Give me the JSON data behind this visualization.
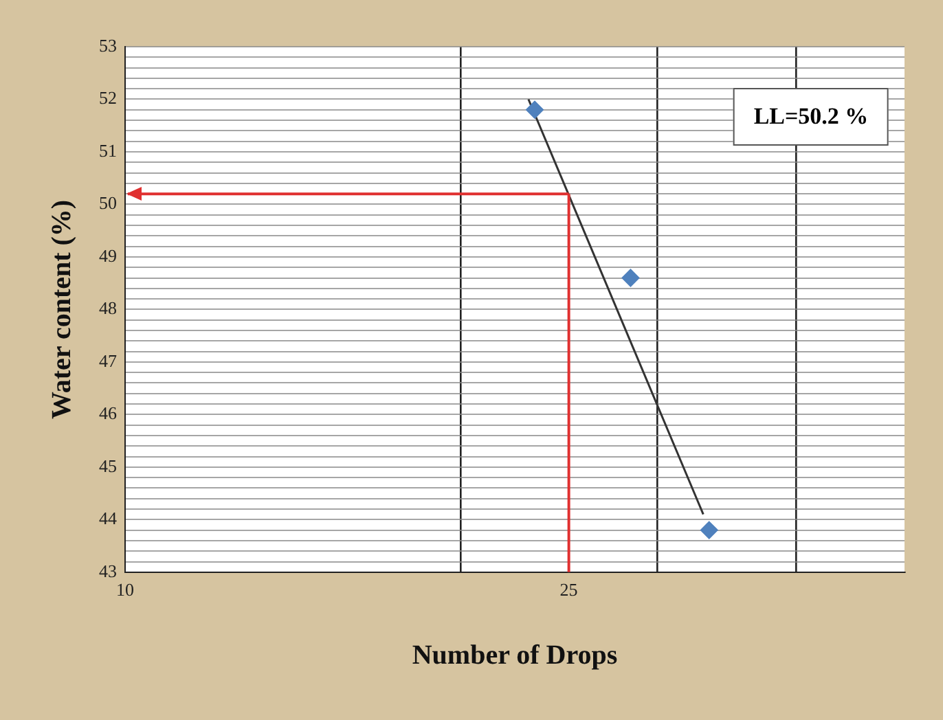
{
  "chart_data": {
    "type": "scatter",
    "xlabel": "Number of Drops",
    "ylabel": "Water content (%)",
    "log": "x",
    "xlim": [
      10,
      50
    ],
    "xticks": [
      10,
      {
        "value": 20,
        "label": null
      },
      25,
      {
        "value": 30,
        "label": null
      },
      {
        "value": 40,
        "label": null
      }
    ],
    "ylim": [
      43,
      53
    ],
    "yticks": [
      43,
      {
        "value": 43.2,
        "label": null
      },
      {
        "value": 43.4,
        "label": null
      },
      {
        "value": 43.6,
        "label": null
      },
      {
        "value": 43.8,
        "label": null
      },
      44,
      {
        "value": 44.2,
        "label": null
      },
      {
        "value": 44.4,
        "label": null
      },
      {
        "value": 44.6,
        "label": null
      },
      {
        "value": 44.8,
        "label": null
      },
      45,
      {
        "value": 45.2,
        "label": null
      },
      {
        "value": 45.4,
        "label": null
      },
      {
        "value": 45.6,
        "label": null
      },
      {
        "value": 45.8,
        "label": null
      },
      46,
      {
        "value": 46.2,
        "label": null
      },
      {
        "value": 46.4,
        "label": null
      },
      {
        "value": 46.6,
        "label": null
      },
      {
        "value": 46.8,
        "label": null
      },
      47,
      {
        "value": 47.2,
        "label": null
      },
      {
        "value": 47.4,
        "label": null
      },
      {
        "value": 47.6,
        "label": null
      },
      {
        "value": 47.8,
        "label": null
      },
      48,
      {
        "value": 48.2,
        "label": null
      },
      {
        "value": 48.4,
        "label": null
      },
      {
        "value": 48.6,
        "label": null
      },
      {
        "value": 48.8,
        "label": null
      },
      49,
      {
        "value": 49.2,
        "label": null
      },
      {
        "value": 49.4,
        "label": null
      },
      {
        "value": 49.6,
        "label": null
      },
      {
        "value": 49.8,
        "label": null
      },
      50,
      {
        "value": 50.2,
        "label": null
      },
      {
        "value": 50.4,
        "label": null
      },
      {
        "value": 50.6,
        "label": null
      },
      {
        "value": 50.8,
        "label": null
      },
      51,
      {
        "value": 51.2,
        "label": null
      },
      {
        "value": 51.4,
        "label": null
      },
      {
        "value": 51.6,
        "label": null
      },
      {
        "value": 51.8,
        "label": null
      },
      52,
      {
        "value": 52.2,
        "label": null
      },
      {
        "value": 52.4,
        "label": null
      },
      {
        "value": 52.6,
        "label": null
      },
      {
        "value": 52.8,
        "label": null
      },
      53
    ],
    "grid": true,
    "legend": false,
    "marker": "diamond",
    "series": [
      {
        "type": "scatter",
        "color": "#4f81bd",
        "x": [
          23.3,
          28.4,
          33.4
        ],
        "values": [
          51.8,
          48.6,
          43.8
        ]
      },
      {
        "type": "line",
        "color": "#333333",
        "x": [
          23.0,
          33.0
        ],
        "values": [
          52.0,
          44.1
        ],
        "marker": "none"
      }
    ],
    "ref_lines": [
      {
        "axis": "x",
        "value": 25,
        "color": "#e03030"
      },
      {
        "axis": "y",
        "value": 50.2,
        "color": "#e03030"
      }
    ],
    "annotations": [
      "LL=50.2 %"
    ]
  }
}
